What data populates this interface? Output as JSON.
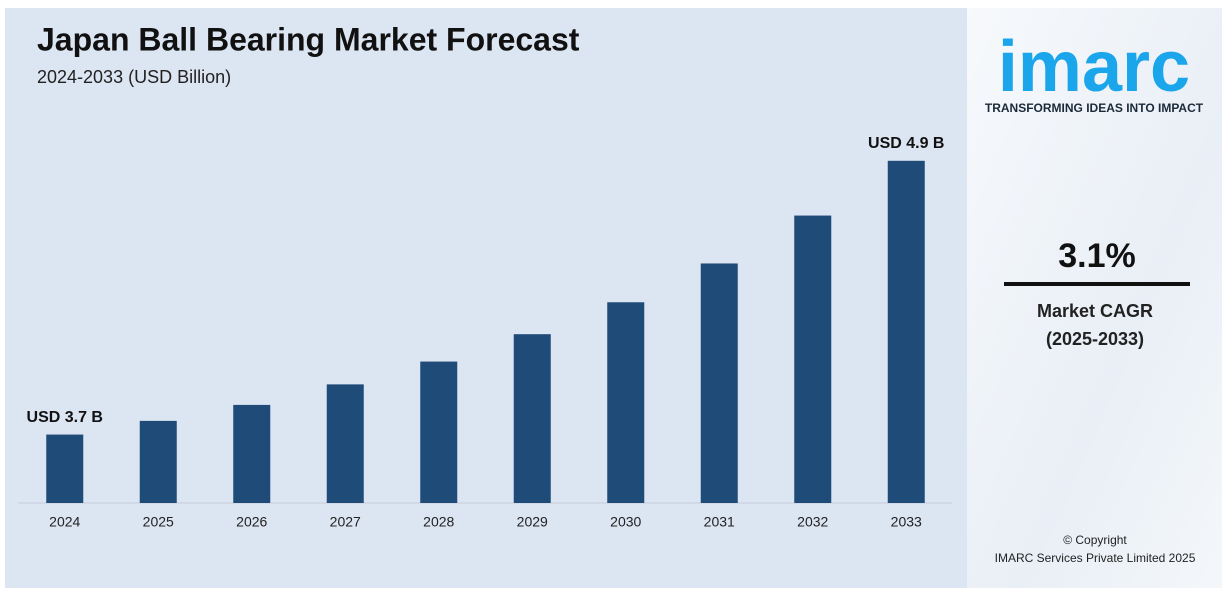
{
  "chart_data": {
    "type": "bar",
    "title": "Japan Ball Bearing Market Forecast",
    "subtitle": "2024-2033 (USD Billion)",
    "categories": [
      "2024",
      "2025",
      "2026",
      "2027",
      "2028",
      "2029",
      "2030",
      "2031",
      "2032",
      "2033"
    ],
    "values": [
      3.7,
      3.76,
      3.83,
      3.92,
      4.02,
      4.14,
      4.28,
      4.45,
      4.66,
      4.9
    ],
    "value_labels": [
      "USD 3.7 B",
      null,
      null,
      null,
      null,
      null,
      null,
      null,
      null,
      "USD 4.9 B"
    ],
    "color": "#1f4b78",
    "ylim": [
      3.4,
      5.0
    ]
  },
  "panel": {
    "logo": "imarc",
    "tagline": "TRANSFORMING IDEAS INTO IMPACT",
    "cagr": "3.1%",
    "cagr_label": "Market CAGR",
    "cagr_period": "(2025-2033)",
    "copyright": "© Copyright",
    "company": "IMARC Services Private Limited 2025"
  }
}
